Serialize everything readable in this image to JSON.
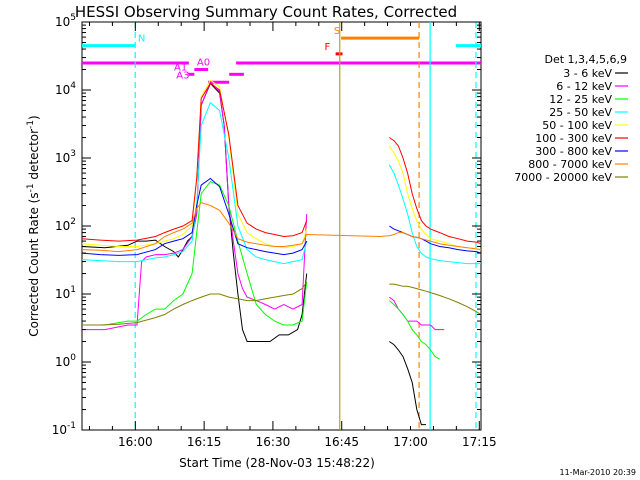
{
  "chart_data": {
    "type": "line",
    "title": "HESSI Observing Summary Count Rates, Corrected",
    "xlabel": "Start Time (28-Nov-03 15:48:22)",
    "ylabel_main": "Corrected Count Rate (s",
    "ylabel_sup1": "-1",
    "ylabel_mid": " detector",
    "ylabel_sup2": "-1",
    "ylabel_end": ")",
    "stamp": "11-Mar-2010 20:39",
    "xlim_minutes": [
      0,
      87
    ],
    "ylim": [
      0.1,
      100000
    ],
    "yscale": "log",
    "x_ticks": [
      {
        "minute": 11.63,
        "label": "16:00"
      },
      {
        "minute": 26.63,
        "label": "16:15"
      },
      {
        "minute": 41.63,
        "label": "16:30"
      },
      {
        "minute": 56.63,
        "label": "16:45"
      },
      {
        "minute": 71.63,
        "label": "17:00"
      },
      {
        "minute": 86.63,
        "label": "17:15"
      }
    ],
    "y_ticks": [
      {
        "value": 0.1,
        "base": "10",
        "exp": "-1"
      },
      {
        "value": 1,
        "base": "10",
        "exp": "0"
      },
      {
        "value": 10,
        "base": "10",
        "exp": "1"
      },
      {
        "value": 100,
        "base": "10",
        "exp": "2"
      },
      {
        "value": 1000,
        "base": "10",
        "exp": "3"
      },
      {
        "value": 10000,
        "base": "10",
        "exp": "4"
      },
      {
        "value": 100000,
        "base": "10",
        "exp": "5"
      }
    ],
    "legend_title": "Det 1,3,4,5,6,9",
    "series": [
      {
        "name": "3 - 6 keV",
        "color": "#000000",
        "x": [
          0,
          5,
          10,
          12,
          14,
          16,
          18,
          20,
          21,
          22,
          23,
          24,
          25,
          26,
          28,
          30,
          31,
          32,
          33,
          34,
          35,
          36,
          37,
          38,
          39,
          40,
          41,
          43,
          45,
          47,
          48,
          49,
          67,
          68,
          69,
          70,
          71,
          72,
          73,
          74,
          75
        ],
        "y": [
          50,
          48,
          52,
          60,
          60,
          62,
          50,
          42,
          35,
          45,
          60,
          70,
          150,
          6000,
          12500,
          9000,
          3000,
          200,
          40,
          10,
          3,
          2,
          2,
          2,
          2,
          2,
          2,
          2.5,
          2.5,
          3,
          5,
          20,
          2,
          1.8,
          1.5,
          1.2,
          0.8,
          0.5,
          0.2,
          0.12,
          0.12
        ]
      },
      {
        "name": "6 - 12 keV",
        "color": "#ff00ff",
        "x": [
          0,
          5,
          10,
          12,
          13,
          14,
          16,
          18,
          20,
          22,
          24,
          25,
          26,
          28,
          30,
          31,
          32,
          33,
          34,
          35,
          36,
          38,
          40,
          42,
          44,
          46,
          48,
          49,
          67,
          68,
          69,
          70,
          71,
          72,
          73,
          74,
          75,
          76,
          77,
          78,
          79
        ],
        "y": [
          3,
          3,
          3.5,
          3.5,
          30,
          35,
          38,
          38,
          40,
          45,
          70,
          150,
          6000,
          13000,
          9500,
          3000,
          200,
          60,
          20,
          12,
          9,
          8,
          7,
          6,
          7,
          6,
          7,
          150,
          9,
          8,
          6,
          5,
          4,
          4,
          4,
          3.5,
          3.5,
          3.5,
          3,
          3,
          3
        ]
      },
      {
        "name": "12 - 25 keV",
        "color": "#00ff00",
        "x": [
          0,
          5,
          10,
          12,
          14,
          16,
          18,
          20,
          22,
          24,
          25,
          26,
          28,
          30,
          32,
          34,
          36,
          38,
          40,
          42,
          44,
          46,
          48,
          49,
          67,
          68,
          69,
          70,
          71,
          72,
          73,
          74,
          75,
          76,
          77,
          78
        ],
        "y": [
          3.5,
          3.5,
          4,
          4,
          5,
          6,
          6,
          8,
          10,
          20,
          80,
          300,
          450,
          400,
          200,
          60,
          20,
          7,
          5,
          4,
          3.5,
          3.5,
          4,
          15,
          8,
          7,
          6,
          5,
          4,
          3,
          2.5,
          2,
          1.8,
          1.5,
          1.2,
          1.1
        ]
      },
      {
        "name": "25 - 50 keV",
        "color": "#00ffff",
        "x": [
          0,
          4,
          8,
          12,
          16,
          18,
          20,
          22,
          24,
          25,
          26,
          28,
          30,
          32,
          34,
          36,
          38,
          40,
          42,
          44,
          46,
          48,
          49,
          67,
          68,
          69,
          70,
          71,
          72,
          73,
          74,
          75,
          76,
          77,
          78,
          80,
          82,
          84,
          86,
          87
        ],
        "y": [
          32,
          31,
          30,
          30,
          34,
          35,
          38,
          42,
          60,
          200,
          3000,
          6500,
          5000,
          1000,
          100,
          45,
          35,
          32,
          30,
          28,
          30,
          32,
          60,
          800,
          600,
          400,
          250,
          150,
          80,
          50,
          40,
          35,
          33,
          32,
          31,
          30,
          29,
          28,
          28,
          28
        ]
      },
      {
        "name": "50 - 100 keV",
        "color": "#ffff00",
        "x": [
          0,
          4,
          8,
          12,
          16,
          18,
          20,
          22,
          24,
          25,
          26,
          28,
          30,
          32,
          34,
          36,
          38,
          40,
          42,
          44,
          46,
          48,
          49,
          67,
          68,
          69,
          70,
          71,
          72,
          73,
          74,
          75,
          76,
          78,
          80,
          82,
          84,
          86,
          87
        ],
        "y": [
          55,
          52,
          50,
          50,
          55,
          60,
          65,
          75,
          100,
          500,
          8000,
          14000,
          11000,
          2000,
          150,
          80,
          65,
          55,
          50,
          48,
          50,
          55,
          90,
          1500,
          1200,
          900,
          600,
          300,
          180,
          120,
          90,
          75,
          65,
          60,
          55,
          50,
          48,
          46,
          45
        ]
      },
      {
        "name": "100 - 300 keV",
        "color": "#ff0000",
        "x": [
          0,
          4,
          8,
          12,
          16,
          18,
          20,
          22,
          24,
          25,
          26,
          28,
          30,
          32,
          34,
          36,
          38,
          40,
          42,
          44,
          46,
          48,
          49,
          67,
          68,
          69,
          70,
          71,
          72,
          73,
          74,
          75,
          76,
          78,
          80,
          82,
          84,
          86,
          87
        ],
        "y": [
          65,
          62,
          60,
          62,
          70,
          80,
          90,
          100,
          120,
          500,
          7500,
          12500,
          10000,
          2200,
          200,
          110,
          90,
          80,
          75,
          70,
          72,
          80,
          120,
          2000,
          1800,
          1500,
          1000,
          600,
          300,
          180,
          120,
          100,
          90,
          80,
          70,
          65,
          60,
          58,
          55
        ]
      },
      {
        "name": "300 - 800 keV",
        "color": "#0000ff",
        "x": [
          0,
          4,
          8,
          12,
          16,
          18,
          20,
          22,
          24,
          25,
          26,
          28,
          30,
          32,
          34,
          36,
          38,
          40,
          42,
          44,
          46,
          48,
          49,
          67,
          68,
          69,
          70,
          71,
          72,
          73,
          74,
          75,
          76,
          78,
          80,
          82,
          84,
          86,
          87
        ],
        "y": [
          40,
          38,
          37,
          38,
          45,
          55,
          60,
          65,
          80,
          200,
          400,
          500,
          380,
          150,
          55,
          48,
          45,
          42,
          40,
          38,
          40,
          45,
          60,
          100,
          90,
          85,
          80,
          75,
          70,
          68,
          65,
          60,
          55,
          50,
          48,
          45,
          43,
          42,
          40
        ]
      },
      {
        "name": "800 - 7000 keV",
        "color": "#ff8000",
        "x": [
          0,
          4,
          8,
          12,
          16,
          18,
          20,
          22,
          24,
          25,
          26,
          28,
          30,
          32,
          34,
          36,
          38,
          40,
          42,
          44,
          46,
          48,
          49,
          65,
          67,
          68,
          69,
          70,
          71,
          72,
          73,
          74,
          76,
          78,
          80,
          82,
          84,
          86,
          87
        ],
        "y": [
          45,
          44,
          42,
          45,
          55,
          70,
          80,
          90,
          110,
          180,
          220,
          200,
          170,
          110,
          65,
          58,
          55,
          52,
          50,
          50,
          52,
          55,
          75,
          70,
          72,
          75,
          80,
          80,
          75,
          70,
          68,
          65,
          60,
          55,
          52,
          50,
          48,
          46,
          45
        ]
      },
      {
        "name": "7000 - 20000 keV",
        "color": "#808000",
        "x": [
          0,
          4,
          8,
          12,
          16,
          18,
          20,
          22,
          24,
          26,
          28,
          30,
          32,
          34,
          36,
          38,
          40,
          42,
          44,
          46,
          48,
          49,
          67,
          68,
          69,
          70,
          71,
          72,
          73,
          74,
          75,
          76,
          78,
          80,
          82,
          84,
          86,
          87
        ],
        "y": [
          3.5,
          3.5,
          3.6,
          3.8,
          4.5,
          5,
          6,
          7,
          8,
          9,
          10,
          10,
          9,
          8.5,
          8,
          8,
          8.5,
          9,
          9.5,
          10,
          12,
          15,
          14,
          14,
          13.5,
          13,
          13,
          12.5,
          12,
          11.5,
          11,
          10.5,
          9.5,
          8.5,
          7.5,
          6.5,
          5.5,
          5
        ]
      }
    ],
    "annotations": [
      {
        "label": "N",
        "color": "#00ffff",
        "bars": [
          [
            0,
            11.5
          ],
          [
            81.5,
            87
          ]
        ],
        "y": 45000,
        "label_x": 13
      },
      {
        "label": "",
        "color": "#ff00ff",
        "bars": [
          [
            0,
            23.3
          ],
          [
            33.6,
            87
          ]
        ],
        "y": 25000
      },
      {
        "label": "A0",
        "color": "#ff00ff",
        "bars": [
          [
            24.5,
            27.5
          ]
        ],
        "y": 20000,
        "label_x": 26.5
      },
      {
        "label": "A1",
        "color": "#ff00ff",
        "bars": [
          [
            23.2,
            24.5
          ]
        ],
        "y": 17000,
        "label_x": 21.5
      },
      {
        "label": "",
        "color": "#ff00ff",
        "bars": [
          [
            32.1,
            35.3
          ]
        ],
        "y": 17000
      },
      {
        "label": "A3",
        "color": "#ff00ff",
        "bars": [
          [
            27.5,
            32.1
          ]
        ],
        "y": 13000,
        "label_x": 22.0
      },
      {
        "label": "S",
        "color": "#ff8000",
        "bars": [
          [
            56.5,
            73.5
          ]
        ],
        "y": 58000,
        "label_x": 55.6
      },
      {
        "label": "F",
        "color": "#ff0000",
        "bars": [
          [
            55.3,
            56.8
          ]
        ],
        "y": 34000,
        "label_x": 53.5
      }
    ],
    "vlines": [
      {
        "x": 11.6,
        "color": "#00ffff",
        "dash": true
      },
      {
        "x": 56.2,
        "color": "#c8a000",
        "dash": false
      },
      {
        "x": 73.5,
        "color": "#ff8000",
        "dash": true
      },
      {
        "x": 75.9,
        "color": "#00ffff",
        "dash": false
      },
      {
        "x": 85.9,
        "color": "#00ffff",
        "dash": true
      }
    ],
    "gaps": [
      [
        49.5,
        66.5
      ]
    ]
  }
}
